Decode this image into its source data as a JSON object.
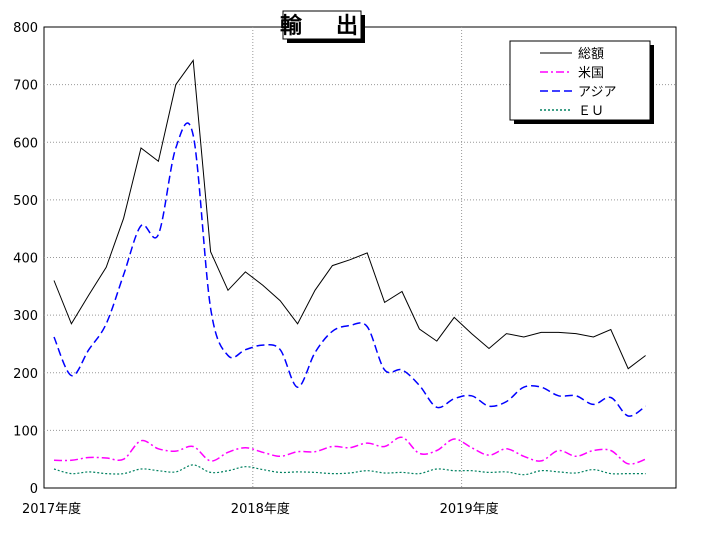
{
  "chart_data": {
    "type": "line",
    "title": "輸　出",
    "xlabel": "",
    "ylabel": "",
    "ylim": [
      0,
      800
    ],
    "yticks": [
      0,
      100,
      200,
      300,
      400,
      500,
      600,
      700,
      800
    ],
    "x_tick_labels": [
      "2017年度",
      "2018年度",
      "2019年度"
    ],
    "grid": true,
    "legend_position": "top-right",
    "series": [
      {
        "name": "総額",
        "color": "#000000",
        "style": "solid",
        "values": [
          360,
          285,
          335,
          383,
          468,
          590,
          567,
          700,
          742,
          410,
          343,
          375,
          352,
          325,
          285,
          343,
          386,
          396,
          408,
          322,
          341,
          276,
          255,
          296,
          268,
          242,
          268,
          262,
          270,
          270,
          268,
          262,
          275,
          207,
          230
        ]
      },
      {
        "name": "米国",
        "color": "#ff00ff",
        "style": "dashdot",
        "values": [
          48,
          48,
          53,
          52,
          50,
          82,
          68,
          64,
          72,
          47,
          62,
          70,
          62,
          55,
          63,
          63,
          72,
          70,
          78,
          72,
          88,
          60,
          65,
          85,
          70,
          57,
          68,
          55,
          47,
          65,
          55,
          65,
          65,
          42,
          50
        ]
      },
      {
        "name": "アジア",
        "color": "#0000ff",
        "style": "dashed",
        "values": [
          262,
          195,
          240,
          285,
          370,
          455,
          440,
          590,
          612,
          312,
          230,
          240,
          248,
          240,
          175,
          235,
          272,
          282,
          280,
          205,
          205,
          178,
          140,
          155,
          160,
          142,
          150,
          175,
          175,
          160,
          160,
          145,
          157,
          125,
          142
        ]
      },
      {
        "name": "ＥＵ",
        "color": "#008060",
        "style": "dotted",
        "values": [
          33,
          25,
          28,
          25,
          25,
          33,
          30,
          28,
          40,
          27,
          30,
          37,
          32,
          27,
          28,
          27,
          25,
          26,
          30,
          26,
          27,
          25,
          33,
          30,
          30,
          27,
          28,
          23,
          30,
          28,
          26,
          32,
          25,
          25,
          25
        ]
      }
    ]
  }
}
